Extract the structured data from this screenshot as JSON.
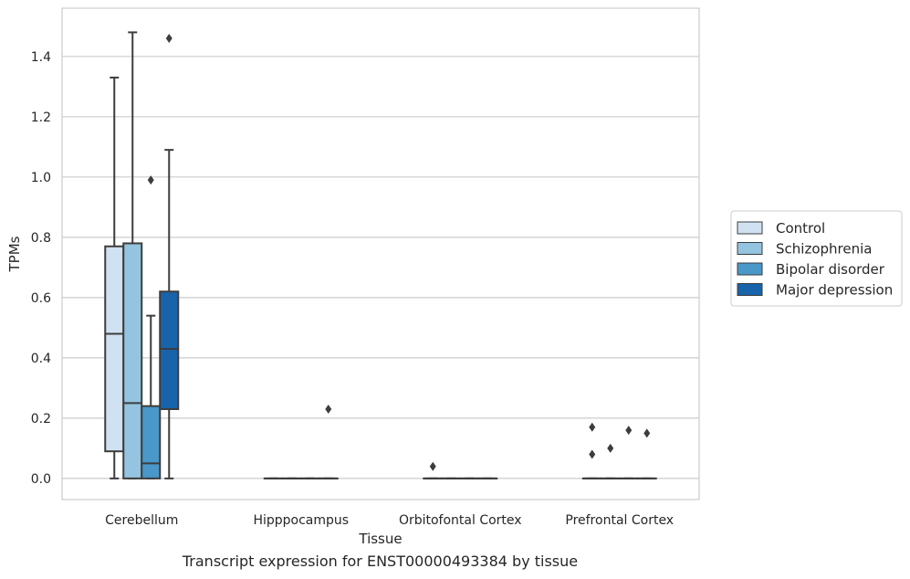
{
  "caption": "Transcript expression for ENST00000493384 by tissue",
  "chart_data": {
    "type": "box",
    "xlabel": "Tissue",
    "ylabel": "TPMs",
    "ylim": [
      -0.07,
      1.56
    ],
    "yticks": [
      0.0,
      0.2,
      0.4,
      0.6,
      0.8,
      1.0,
      1.2,
      1.4
    ],
    "ytick_labels": [
      "0.0",
      "0.2",
      "0.4",
      "0.6",
      "0.8",
      "1.0",
      "1.2",
      "1.4"
    ],
    "grid": "horizontal",
    "legend_placement": "right, outside plot",
    "categories": [
      "Cerebellum",
      "Hipppocampus",
      "Orbitofontal Cortex",
      "Prefrontal Cortex"
    ],
    "series": [
      {
        "name": "Control",
        "color": "#d0e1f2",
        "boxes": [
          {
            "category": "Cerebellum",
            "min": 0.0,
            "q1": 0.09,
            "median": 0.48,
            "q3": 0.77,
            "max": 1.33,
            "outliers": []
          },
          {
            "category": "Hipppocampus",
            "min": 0.0,
            "q1": 0.0,
            "median": 0.0,
            "q3": 0.0,
            "max": 0.0,
            "outliers": []
          },
          {
            "category": "Orbitofontal Cortex",
            "min": 0.0,
            "q1": 0.0,
            "median": 0.0,
            "q3": 0.0,
            "max": 0.0,
            "outliers": [
              0.04
            ]
          },
          {
            "category": "Prefrontal Cortex",
            "min": 0.0,
            "q1": 0.0,
            "median": 0.0,
            "q3": 0.0,
            "max": 0.0,
            "outliers": [
              0.08,
              0.17
            ]
          }
        ]
      },
      {
        "name": "Schizophrenia",
        "color": "#94c4df",
        "boxes": [
          {
            "category": "Cerebellum",
            "min": 0.0,
            "q1": 0.0,
            "median": 0.25,
            "q3": 0.78,
            "max": 1.48,
            "outliers": []
          },
          {
            "category": "Hipppocampus",
            "min": 0.0,
            "q1": 0.0,
            "median": 0.0,
            "q3": 0.0,
            "max": 0.0,
            "outliers": []
          },
          {
            "category": "Orbitofontal Cortex",
            "min": 0.0,
            "q1": 0.0,
            "median": 0.0,
            "q3": 0.0,
            "max": 0.0,
            "outliers": []
          },
          {
            "category": "Prefrontal Cortex",
            "min": 0.0,
            "q1": 0.0,
            "median": 0.0,
            "q3": 0.0,
            "max": 0.0,
            "outliers": [
              0.1
            ]
          }
        ]
      },
      {
        "name": "Bipolar disorder",
        "color": "#4a98c9",
        "boxes": [
          {
            "category": "Cerebellum",
            "min": 0.0,
            "q1": 0.0,
            "median": 0.05,
            "q3": 0.24,
            "max": 0.54,
            "outliers": [
              0.99
            ]
          },
          {
            "category": "Hipppocampus",
            "min": 0.0,
            "q1": 0.0,
            "median": 0.0,
            "q3": 0.0,
            "max": 0.0,
            "outliers": []
          },
          {
            "category": "Orbitofontal Cortex",
            "min": 0.0,
            "q1": 0.0,
            "median": 0.0,
            "q3": 0.0,
            "max": 0.0,
            "outliers": []
          },
          {
            "category": "Prefrontal Cortex",
            "min": 0.0,
            "q1": 0.0,
            "median": 0.0,
            "q3": 0.0,
            "max": 0.0,
            "outliers": [
              0.16
            ]
          }
        ]
      },
      {
        "name": "Major depression",
        "color": "#1764ab",
        "boxes": [
          {
            "category": "Cerebellum",
            "min": 0.0,
            "q1": 0.23,
            "median": 0.43,
            "q3": 0.62,
            "max": 1.09,
            "outliers": [
              1.46
            ]
          },
          {
            "category": "Hipppocampus",
            "min": 0.0,
            "q1": 0.0,
            "median": 0.0,
            "q3": 0.0,
            "max": 0.0,
            "outliers": [
              0.23
            ]
          },
          {
            "category": "Orbitofontal Cortex",
            "min": 0.0,
            "q1": 0.0,
            "median": 0.0,
            "q3": 0.0,
            "max": 0.0,
            "outliers": []
          },
          {
            "category": "Prefrontal Cortex",
            "min": 0.0,
            "q1": 0.0,
            "median": 0.0,
            "q3": 0.0,
            "max": 0.0,
            "outliers": [
              0.15
            ]
          }
        ]
      }
    ]
  }
}
